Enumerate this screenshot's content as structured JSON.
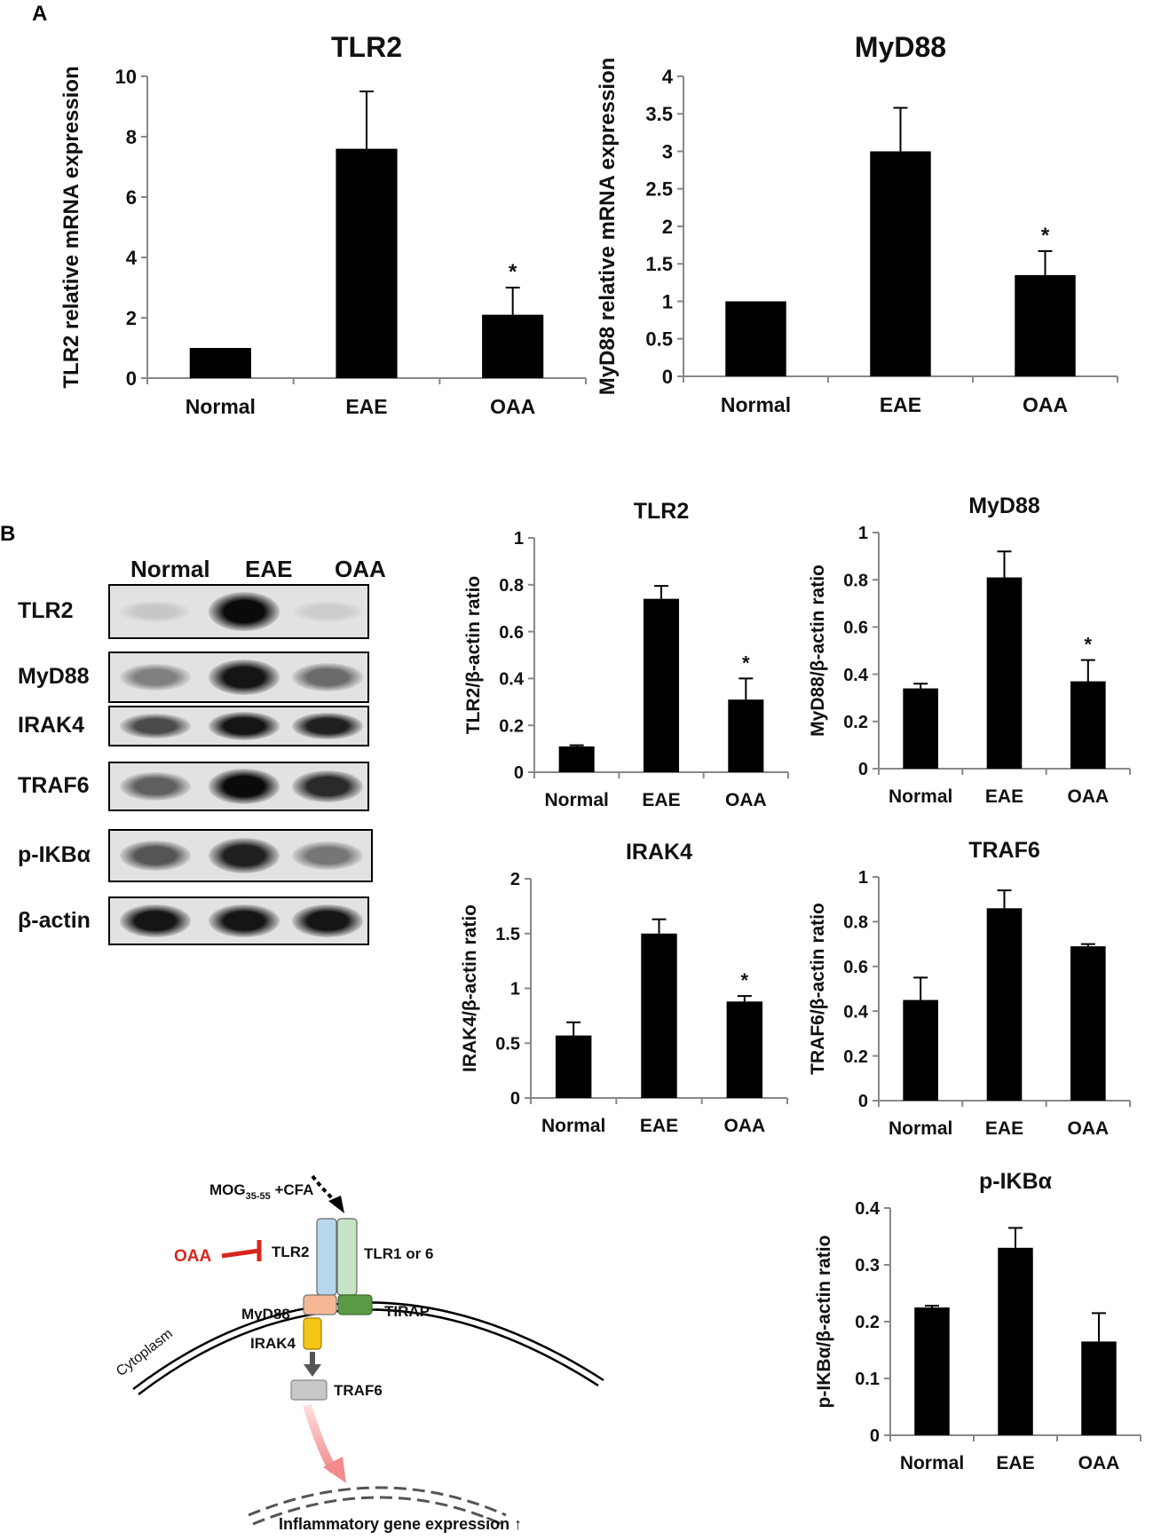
{
  "panels": {
    "a": "A",
    "b": "B"
  },
  "chart_data": [
    {
      "id": "a_tlr2",
      "type": "bar",
      "title": "TLR2",
      "ylabel": "TLR2 relative mRNA expression",
      "categories": [
        "Normal",
        "EAE",
        "OAA"
      ],
      "values": [
        1.0,
        7.6,
        2.1
      ],
      "errors": [
        0,
        1.9,
        0.9
      ],
      "significance": [
        "",
        "",
        "*"
      ],
      "ylim": [
        0,
        10
      ],
      "yticks": [
        0,
        2,
        4,
        6,
        8,
        10
      ],
      "ytick_labels": [
        "0",
        "2",
        "4",
        "6",
        "8",
        "10"
      ],
      "grid": false,
      "legend": "none"
    },
    {
      "id": "a_myd88",
      "type": "bar",
      "title": "MyD88",
      "ylabel": "MyD88 relative mRNA expression",
      "categories": [
        "Normal",
        "EAE",
        "OAA"
      ],
      "values": [
        1.0,
        3.0,
        1.35
      ],
      "errors": [
        0,
        0.58,
        0.32
      ],
      "significance": [
        "",
        "",
        "*"
      ],
      "ylim": [
        0,
        4
      ],
      "yticks": [
        0,
        0.5,
        1,
        1.5,
        2,
        2.5,
        3,
        3.5,
        4
      ],
      "ytick_labels": [
        "0",
        "0.5",
        "1",
        "1.5",
        "2",
        "2.5",
        "3",
        "3.5",
        "4"
      ],
      "grid": false,
      "legend": "none"
    },
    {
      "id": "b_tlr2",
      "type": "bar",
      "title": "TLR2",
      "ylabel": "TLR2/β-actin ratio",
      "categories": [
        "Normal",
        "EAE",
        "OAA"
      ],
      "values": [
        0.11,
        0.74,
        0.31
      ],
      "errors": [
        0.005,
        0.055,
        0.09
      ],
      "significance": [
        "",
        "",
        "*"
      ],
      "ylim": [
        0,
        1
      ],
      "yticks": [
        0,
        0.2,
        0.4,
        0.6,
        0.8,
        1
      ],
      "ytick_labels": [
        "0",
        "0.2",
        "0.4",
        "0.6",
        "0.8",
        "1"
      ],
      "grid": false,
      "legend": "none"
    },
    {
      "id": "b_myd88",
      "type": "bar",
      "title": "MyD88",
      "ylabel": "MyD88/β-actin ratio",
      "categories": [
        "Normal",
        "EAE",
        "OAA"
      ],
      "values": [
        0.34,
        0.81,
        0.37
      ],
      "errors": [
        0.02,
        0.11,
        0.09
      ],
      "significance": [
        "",
        "",
        "*"
      ],
      "ylim": [
        0,
        1
      ],
      "yticks": [
        0,
        0.2,
        0.4,
        0.6,
        0.8,
        1
      ],
      "ytick_labels": [
        "0",
        "0.2",
        "0.4",
        "0.6",
        "0.8",
        "1"
      ],
      "grid": false,
      "legend": "none"
    },
    {
      "id": "b_irak4",
      "type": "bar",
      "title": "IRAK4",
      "ylabel": "IRAK4/β-actin ratio",
      "categories": [
        "Normal",
        "EAE",
        "OAA"
      ],
      "values": [
        0.57,
        1.5,
        0.88
      ],
      "errors": [
        0.12,
        0.13,
        0.05
      ],
      "significance": [
        "",
        "",
        "*"
      ],
      "ylim": [
        0,
        2
      ],
      "yticks": [
        0,
        0.5,
        1,
        1.5,
        2
      ],
      "ytick_labels": [
        "0",
        "0.5",
        "1",
        "1.5",
        "2"
      ],
      "grid": false,
      "legend": "none"
    },
    {
      "id": "b_traf6",
      "type": "bar",
      "title": "TRAF6",
      "ylabel": "TRAF6/β-actin ratio",
      "categories": [
        "Normal",
        "EAE",
        "OAA"
      ],
      "values": [
        0.45,
        0.86,
        0.69
      ],
      "errors": [
        0.1,
        0.08,
        0.01
      ],
      "significance": [
        "",
        "",
        ""
      ],
      "ylim": [
        0,
        1
      ],
      "yticks": [
        0,
        0.2,
        0.4,
        0.6,
        0.8,
        1
      ],
      "ytick_labels": [
        "0",
        "0.2",
        "0.4",
        "0.6",
        "0.8",
        "1"
      ],
      "grid": false,
      "legend": "none"
    },
    {
      "id": "b_pikba",
      "type": "bar",
      "title": "p-IKBα",
      "ylabel": "p-IKBα/β-actin ratio",
      "categories": [
        "Normal",
        "EAE",
        "OAA"
      ],
      "values": [
        0.225,
        0.33,
        0.165
      ],
      "errors": [
        0.003,
        0.035,
        0.05
      ],
      "significance": [
        "",
        "",
        ""
      ],
      "ylim": [
        0,
        0.4
      ],
      "yticks": [
        0,
        0.1,
        0.2,
        0.3,
        0.4
      ],
      "ytick_labels": [
        "0",
        "0.1",
        "0.2",
        "0.3",
        "0.4"
      ],
      "grid": false,
      "legend": "none"
    }
  ],
  "blot": {
    "lanes": [
      "Normal",
      "EAE",
      "OAA"
    ],
    "rows": [
      {
        "label": "TLR2",
        "intensities": [
          0.12,
          1.0,
          0.1
        ]
      },
      {
        "label": "MyD88",
        "intensities": [
          0.45,
          0.95,
          0.55
        ]
      },
      {
        "label": "IRAK4",
        "intensities": [
          0.7,
          0.95,
          0.9
        ]
      },
      {
        "label": "TRAF6",
        "intensities": [
          0.6,
          1.0,
          0.85
        ]
      },
      {
        "label": "p-IKBα",
        "intensities": [
          0.65,
          0.9,
          0.5
        ]
      },
      {
        "label": "β-actin",
        "intensities": [
          0.95,
          0.95,
          0.95
        ]
      }
    ]
  },
  "pathway": {
    "mog_label": "MOG",
    "mog_subscript": "35-55",
    "mog_suffix": " +CFA",
    "oaa": "OAA",
    "tlr2": "TLR2",
    "tlr16": "TLR1 or 6",
    "myd88": "MyD88",
    "tirap": "TIRAP",
    "irak4": "IRAK4",
    "traf6": "TRAF6",
    "cytoplasm": "Cytoplasm",
    "gene_expression": "Inflammatory gene expression ↑",
    "colors": {
      "tlr2": "#b9d7ea",
      "tlr16": "#c8e3c5",
      "myd88": "#f4b994",
      "tirap": "#5b9a44",
      "irak4": "#f5c518",
      "traf6": "#c8c8c8",
      "inhibit": "#d9261c",
      "arrow_pink": "#f28b8b"
    }
  }
}
